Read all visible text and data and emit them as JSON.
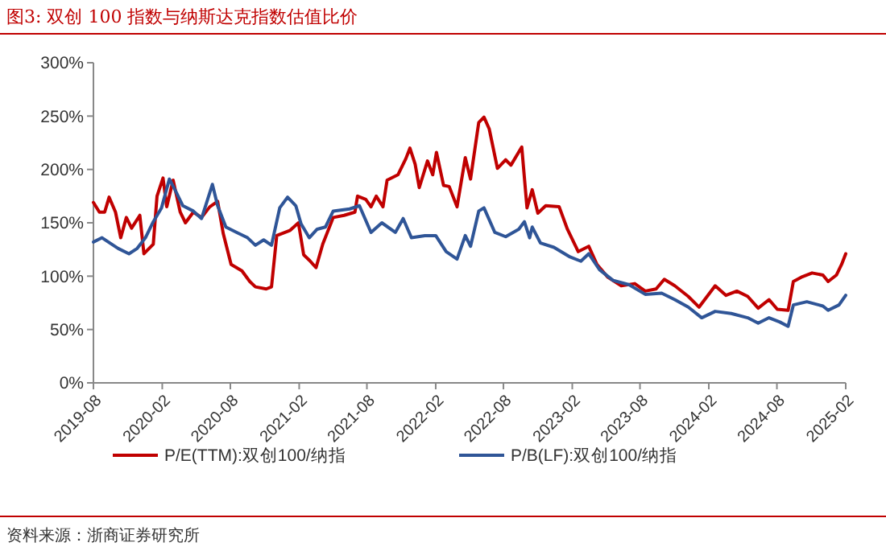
{
  "chart_data": {
    "type": "line",
    "title": "图3:  双创 100 指数与纳斯达克指数估值比价",
    "annotations": [
      "资料来源：浙商证券研究所"
    ],
    "xlim": [
      "2019-08",
      "2025-02"
    ],
    "xticks": [
      "2019-08",
      "2020-02",
      "2020-08",
      "2021-02",
      "2021-08",
      "2022-02",
      "2022-08",
      "2023-02",
      "2023-08",
      "2024-02",
      "2024-08",
      "2025-02"
    ],
    "ylim": [
      0,
      300
    ],
    "yticks": [
      {
        "value": 0,
        "label": "0%"
      },
      {
        "value": 50,
        "label": "50%"
      },
      {
        "value": 100,
        "label": "100%"
      },
      {
        "value": 150,
        "label": "150%"
      },
      {
        "value": 200,
        "label": "200%"
      },
      {
        "value": 250,
        "label": "250%"
      },
      {
        "value": 300,
        "label": "300%"
      }
    ],
    "grid": false,
    "legend": "bottom",
    "line_style": "solid",
    "series": [
      {
        "name": "P/E(TTM):双创100/纳指",
        "color": "#c00000",
        "x": [
          "2019-08-01",
          "2019-08-17",
          "2019-08-31",
          "2019-09-12",
          "2019-09-29",
          "2019-10-13",
          "2019-10-28",
          "2019-11-11",
          "2019-12-03",
          "2019-12-14",
          "2020-01-08",
          "2020-01-18",
          "2020-02-03",
          "2020-02-13",
          "2020-03-01",
          "2020-03-20",
          "2020-04-03",
          "2020-04-24",
          "2020-05-16",
          "2020-06-07",
          "2020-06-28",
          "2020-07-13",
          "2020-08-03",
          "2020-09-01",
          "2020-09-22",
          "2020-10-07",
          "2020-11-05",
          "2020-11-19",
          "2020-12-03",
          "2021-01-08",
          "2021-01-30",
          "2021-02-13",
          "2021-02-28",
          "2021-03-18",
          "2021-04-05",
          "2021-05-03",
          "2021-06-01",
          "2021-06-30",
          "2021-07-07",
          "2021-07-29",
          "2021-08-12",
          "2021-08-26",
          "2021-09-13",
          "2021-09-24",
          "2021-10-23",
          "2021-11-13",
          "2021-11-24",
          "2021-12-08",
          "2021-12-19",
          "2022-01-10",
          "2022-01-24",
          "2022-02-03",
          "2022-02-22",
          "2022-03-09",
          "2022-03-30",
          "2022-04-21",
          "2022-05-05",
          "2022-05-27",
          "2022-06-10",
          "2022-06-24",
          "2022-07-16",
          "2022-08-07",
          "2022-08-21",
          "2022-09-19",
          "2022-10-03",
          "2022-10-17",
          "2022-11-01",
          "2022-11-22",
          "2022-12-28",
          "2023-01-19",
          "2023-02-17",
          "2023-03-17",
          "2023-04-08",
          "2023-05-07",
          "2023-06-12",
          "2023-07-18",
          "2023-08-15",
          "2023-09-13",
          "2023-10-05",
          "2023-11-02",
          "2023-12-08",
          "2024-01-06",
          "2024-02-18",
          "2024-03-18",
          "2024-04-16",
          "2024-05-15",
          "2024-06-12",
          "2024-07-11",
          "2024-08-02",
          "2024-08-31",
          "2024-09-14",
          "2024-10-05",
          "2024-11-03",
          "2024-12-02",
          "2024-12-16",
          "2025-01-07",
          "2025-01-21",
          "2025-02-01"
        ],
        "values": [
          169,
          160,
          160,
          174,
          160,
          136,
          155,
          145,
          157,
          121,
          130,
          175,
          192,
          165,
          190,
          160,
          150,
          160,
          155,
          165,
          170,
          140,
          111,
          105,
          95,
          90,
          88,
          90,
          138,
          143,
          150,
          120,
          115,
          108,
          130,
          155,
          157,
          160,
          175,
          172,
          165,
          175,
          165,
          190,
          195,
          210,
          220,
          205,
          183,
          208,
          195,
          216,
          185,
          184,
          165,
          211,
          191,
          244,
          249,
          238,
          201,
          209,
          204,
          221,
          164,
          181,
          159,
          166,
          165,
          144,
          123,
          128,
          111,
          99,
          91,
          93,
          86,
          88,
          97,
          91,
          81,
          71,
          91,
          82,
          86,
          81,
          70,
          78,
          69,
          68,
          95,
          99,
          103,
          101,
          95,
          101,
          111,
          121
        ]
      },
      {
        "name": "P/B(LF):双创100/纳指",
        "color": "#2f5597",
        "x": [
          "2019-08-01",
          "2019-08-24",
          "2019-09-14",
          "2019-10-06",
          "2019-11-04",
          "2019-11-26",
          "2019-12-18",
          "2020-01-08",
          "2020-01-30",
          "2020-02-20",
          "2020-03-06",
          "2020-03-27",
          "2020-04-24",
          "2020-05-16",
          "2020-06-14",
          "2020-06-28",
          "2020-07-20",
          "2020-08-18",
          "2020-09-16",
          "2020-10-07",
          "2020-10-29",
          "2020-11-19",
          "2020-12-11",
          "2021-01-01",
          "2021-01-23",
          "2021-02-06",
          "2021-02-28",
          "2021-03-21",
          "2021-04-12",
          "2021-05-03",
          "2021-06-16",
          "2021-07-12",
          "2021-08-12",
          "2021-09-10",
          "2021-10-16",
          "2021-11-06",
          "2021-11-28",
          "2022-01-03",
          "2022-02-01",
          "2022-03-01",
          "2022-03-30",
          "2022-04-21",
          "2022-05-05",
          "2022-05-27",
          "2022-06-10",
          "2022-07-09",
          "2022-08-07",
          "2022-09-11",
          "2022-09-26",
          "2022-10-10",
          "2022-10-17",
          "2022-11-08",
          "2022-12-14",
          "2023-01-26",
          "2023-02-24",
          "2023-03-17",
          "2023-04-15",
          "2023-05-21",
          "2023-07-03",
          "2023-08-15",
          "2023-09-28",
          "2023-11-02",
          "2023-12-08",
          "2024-01-13",
          "2024-02-18",
          "2024-04-01",
          "2024-05-15",
          "2024-06-12",
          "2024-07-11",
          "2024-08-09",
          "2024-08-31",
          "2024-09-14",
          "2024-10-20",
          "2024-12-02",
          "2024-12-16",
          "2025-01-14",
          "2025-02-01"
        ],
        "values": [
          132,
          136,
          131,
          126,
          121,
          126,
          136,
          151,
          164,
          191,
          181,
          166,
          161,
          154,
          186,
          166,
          146,
          141,
          136,
          129,
          134,
          129,
          164,
          174,
          166,
          149,
          136,
          144,
          146,
          161,
          163,
          166,
          141,
          150,
          141,
          154,
          136,
          138,
          138,
          123,
          116,
          138,
          128,
          161,
          164,
          141,
          137,
          144,
          151,
          136,
          146,
          131,
          127,
          118,
          114,
          121,
          106,
          96,
          92,
          83,
          84,
          78,
          71,
          61,
          67,
          65,
          61,
          56,
          61,
          57,
          53,
          73,
          76,
          72,
          68,
          73,
          82
        ]
      }
    ]
  }
}
